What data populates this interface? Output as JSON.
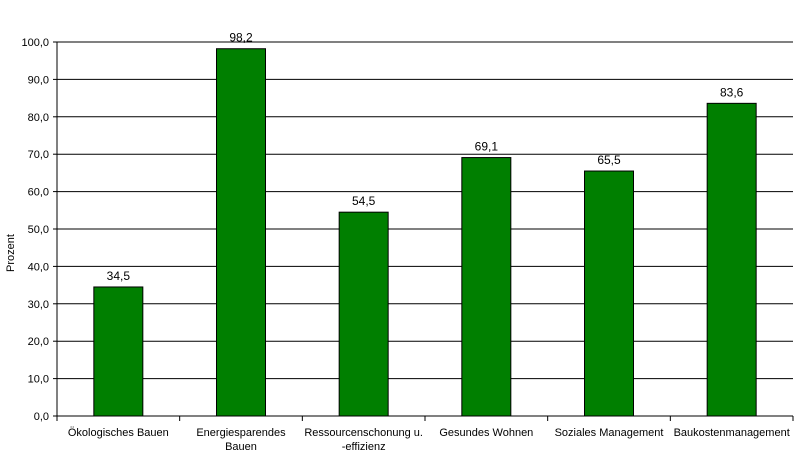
{
  "chart_data": {
    "type": "bar",
    "categories": [
      [
        "Ökologisches Bauen"
      ],
      [
        "Energiesparendes",
        "Bauen"
      ],
      [
        "Ressourcenschonung u.",
        "-effizienz"
      ],
      [
        "Gesundes Wohnen"
      ],
      [
        "Soziales Management"
      ],
      [
        "Baukostenmanagement"
      ]
    ],
    "values": [
      34.5,
      98.2,
      54.5,
      69.1,
      65.5,
      83.6
    ],
    "data_labels": [
      "34,5",
      "98,2",
      "54,5",
      "69,1",
      "65,5",
      "83,6"
    ],
    "ylabel": "Prozent",
    "xlabel": "",
    "ylim": [
      0,
      100
    ],
    "yticks": [
      0,
      10,
      20,
      30,
      40,
      50,
      60,
      70,
      80,
      90,
      100
    ],
    "ytick_labels": [
      "0,0",
      "10,0",
      "20,0",
      "30,0",
      "40,0",
      "50,0",
      "60,0",
      "70,0",
      "80,0",
      "90,0",
      "100,0"
    ],
    "grid": true,
    "bar_color": "#007f00",
    "grid_color": "#000000"
  }
}
